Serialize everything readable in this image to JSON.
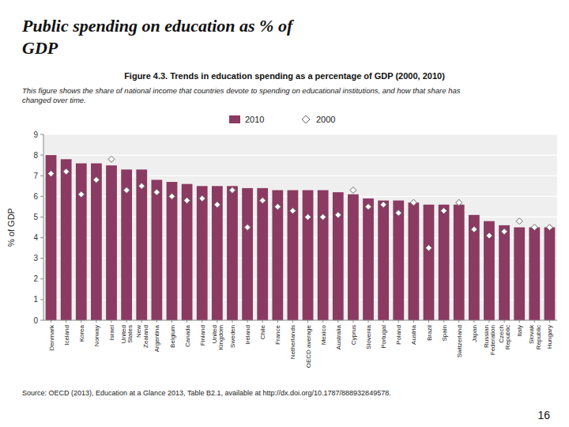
{
  "chart_data": {
    "type": "bar",
    "title": "Public spending on education as % of\nGDP",
    "subtitle": "Figure 4.3.  Trends in education spending as a percentage of GDP (2000, 2010)",
    "annotations": [
      "This figure shows the share of national income that countries devote to spending on educational institutions, and how that share has\nchanged over time.",
      "Source:  OECD (2013), Education at a Glance 2013, Table B2.1, available at http://dx.doi.org/10.1787/888932849578.",
      "16"
    ],
    "y_label": "% of GDP",
    "categories": [
      "Denmark",
      "Iceland",
      "Korea",
      "Norway",
      "Israel",
      "United\nStates",
      "New\nZealand",
      "Argentina",
      "Belgium",
      "Canada",
      "Finland",
      "United\nKingdom",
      "Sweden",
      "Ireland",
      "Chile",
      "France",
      "Netherlands",
      "OECD average",
      "Mexico",
      "Australia",
      "Cyprus",
      "Slovenia",
      "Portugal",
      "Poland",
      "Austria",
      "Brazil",
      "Spain",
      "Switzerland",
      "Japan",
      "Russian\nFederation",
      "Czech\nRepublic",
      "Italy",
      "Slovak\nRepublic",
      "Hungary"
    ],
    "series": [
      {
        "name": "2010",
        "type": "bar",
        "color": "#8B3A62",
        "values": [
          8.0,
          7.8,
          7.6,
          7.6,
          7.5,
          7.3,
          7.3,
          6.8,
          6.7,
          6.6,
          6.5,
          6.5,
          6.5,
          6.4,
          6.4,
          6.3,
          6.3,
          6.3,
          6.3,
          6.2,
          6.1,
          5.9,
          5.8,
          5.8,
          5.7,
          5.6,
          5.6,
          5.6,
          5.1,
          4.8,
          4.6,
          4.5,
          4.5,
          4.5
        ]
      },
      {
        "name": "2000",
        "type": "scatter",
        "marker": "diamond",
        "color": "white",
        "values": [
          7.1,
          7.2,
          6.1,
          6.8,
          7.8,
          6.3,
          6.5,
          6.2,
          6.0,
          5.8,
          5.9,
          5.6,
          6.3,
          4.5,
          5.8,
          5.5,
          5.3,
          5.0,
          5.0,
          5.1,
          6.3,
          5.5,
          5.6,
          5.2,
          5.7,
          3.5,
          5.3,
          5.7,
          4.4,
          4.1,
          4.3,
          4.8,
          4.5,
          4.5
        ]
      }
    ],
    "ylim": [
      0,
      9
    ],
    "yticks": [
      0,
      1,
      2,
      3,
      4,
      5,
      6,
      7,
      8,
      9
    ],
    "grid": true,
    "legend": "top"
  }
}
